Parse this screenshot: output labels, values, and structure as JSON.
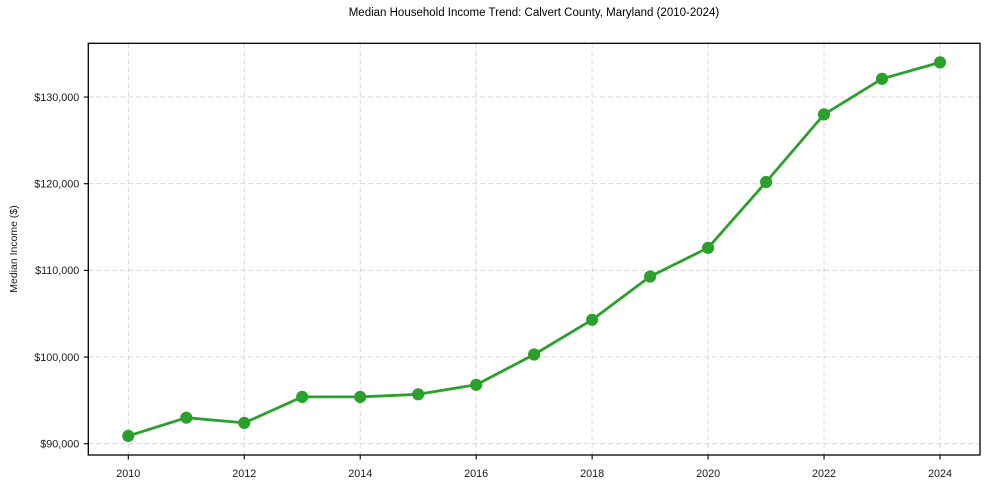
{
  "chart_data": {
    "type": "line",
    "title": "Median Household Income Trend: Calvert County, Maryland (2010-2024)",
    "xlabel": "",
    "ylabel": "Median Income ($)",
    "x": [
      2010,
      2011,
      2012,
      2013,
      2014,
      2015,
      2016,
      2017,
      2018,
      2019,
      2020,
      2021,
      2022,
      2023,
      2024
    ],
    "series": [
      {
        "name": "Median household income",
        "color": "#2ca02c",
        "values": [
          90900,
          93000,
          92400,
          95400,
          95400,
          95700,
          96800,
          100300,
          104300,
          109300,
          112600,
          120200,
          128000,
          132100,
          134000
        ]
      }
    ],
    "xlim": [
      2009.31,
      2024.69
    ],
    "ylim": [
      88700,
      136200
    ],
    "xticks": [
      2010,
      2012,
      2014,
      2016,
      2018,
      2020,
      2022,
      2024
    ],
    "xtick_labels": [
      "2010",
      "2012",
      "2014",
      "2016",
      "2018",
      "2020",
      "2022",
      "2024"
    ],
    "yticks": [
      90000,
      100000,
      110000,
      120000,
      130000
    ],
    "ytick_labels": [
      "$90,000",
      "$100,000",
      "$110,000",
      "$120,000",
      "$130,000"
    ],
    "grid": true,
    "grid_style": "dashed",
    "grid_color": "#d4d4d4",
    "frame_color": "#000000",
    "text_color": "#1a1a1a",
    "legend_position": "none",
    "marker": "circle"
  }
}
